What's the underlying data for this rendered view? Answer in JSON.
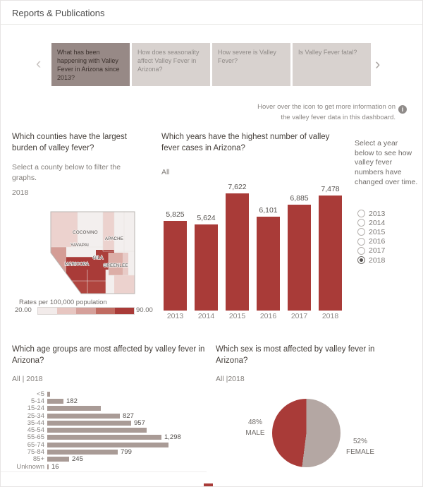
{
  "page": {
    "title": "Reports & Publications"
  },
  "tab_bar": {
    "prev_label": "‹",
    "next_label": "›",
    "tabs": [
      {
        "label": "What has been happening with Valley Fever in Arizona since 2013?",
        "selected": true
      },
      {
        "label": "How does seasonality affect Valley Fever in Arizona?",
        "selected": false
      },
      {
        "label": "How severe is Valley Fever?",
        "selected": false
      },
      {
        "label": "Is Valley Fever fatal?",
        "selected": false
      }
    ]
  },
  "info_note": {
    "line1": "Hover over the icon to get more information on",
    "line2": "the valley fever data in this dashboard.",
    "icon_glyph": "i"
  },
  "county_section": {
    "title": "Which counties have the largest burden of valley fever?",
    "subtitle": "Select a county below to filter the graphs.",
    "year_label": "2018",
    "map_labels": {
      "coconino": "COCONINO",
      "apache": "APACHE",
      "yavapai": "YAVAPAI",
      "maricopa": "MARICOPA",
      "gila": "GILA",
      "greenlee": "GREENLEE"
    },
    "legend": {
      "title": "Rates per 100,000 population",
      "min": "20.00",
      "max": "90.00",
      "colors": [
        "#f2ebea",
        "#e7c6c1",
        "#d5a09a",
        "#c06b61",
        "#a93b38"
      ]
    }
  },
  "years_section": {
    "title": "Which years have the highest number of valley fever cases in Arizona?",
    "filter_label": "All"
  },
  "year_selector": {
    "prompt": "Select a year below to see how valley fever numbers have changed over time.",
    "options": [
      "2013",
      "2014",
      "2015",
      "2016",
      "2017",
      "2018"
    ],
    "selected": "2018"
  },
  "age_section": {
    "title": "Which age groups are most affected by valley fever in Arizona?",
    "filter_label": "All | 2018"
  },
  "sex_section": {
    "title": "Which sex is most affected by valley fever in Arizona?",
    "filter_label": "All |2018"
  },
  "colors": {
    "accent_red": "#a93b38",
    "bar_gray": "#a99b96",
    "pie_female_gray": "#b4a7a3",
    "tab_selected_bg": "#978986",
    "tab_unselected_bg": "#d8d2cf"
  },
  "chart_data": [
    {
      "id": "cases_by_year",
      "type": "bar",
      "title": "Which years have the highest number of valley fever cases in Arizona?",
      "categories": [
        "2013",
        "2014",
        "2015",
        "2016",
        "2017",
        "2018"
      ],
      "values": [
        5825,
        5624,
        7622,
        6101,
        6885,
        7478
      ],
      "labels": [
        "5,825",
        "5,624",
        "7,622",
        "6,101",
        "6,885",
        "7,478"
      ],
      "bar_color": "#a93b38",
      "ylim": [
        0,
        7622
      ]
    },
    {
      "id": "cases_by_age",
      "type": "bar",
      "orientation": "horizontal",
      "title": "Which age groups are most affected by valley fever in Arizona?",
      "categories": [
        "<5",
        "5-14",
        "15-24",
        "25-34",
        "35-44",
        "45-54",
        "55-65",
        "65-74",
        "75-84",
        "85+",
        "Unknown"
      ],
      "values": [
        30,
        182,
        610,
        827,
        957,
        1130,
        1298,
        1380,
        799,
        245,
        16
      ],
      "labels": [
        "",
        "182",
        "",
        "827",
        "957",
        "",
        "1,298",
        "",
        "799",
        "245",
        "16"
      ],
      "bar_color": "#a99b96"
    },
    {
      "id": "cases_by_sex",
      "type": "pie",
      "title": "Which sex is most affected by valley fever in Arizona?",
      "slices": [
        {
          "label": "MALE",
          "pct": 48,
          "pct_label": "48%",
          "color": "#a93b38"
        },
        {
          "label": "FEMALE",
          "pct": 52,
          "pct_label": "52%",
          "color": "#b4a7a3"
        }
      ]
    },
    {
      "id": "county_rate_map",
      "type": "heatmap",
      "title": "Which counties have the largest burden of valley fever?",
      "legend": "Rates per 100,000 population",
      "range": [
        20.0,
        90.0
      ],
      "labeled_counties": [
        "COCONINO",
        "APACHE",
        "YAVAPAI",
        "MARICOPA",
        "GILA",
        "GREENLEE"
      ]
    }
  ]
}
